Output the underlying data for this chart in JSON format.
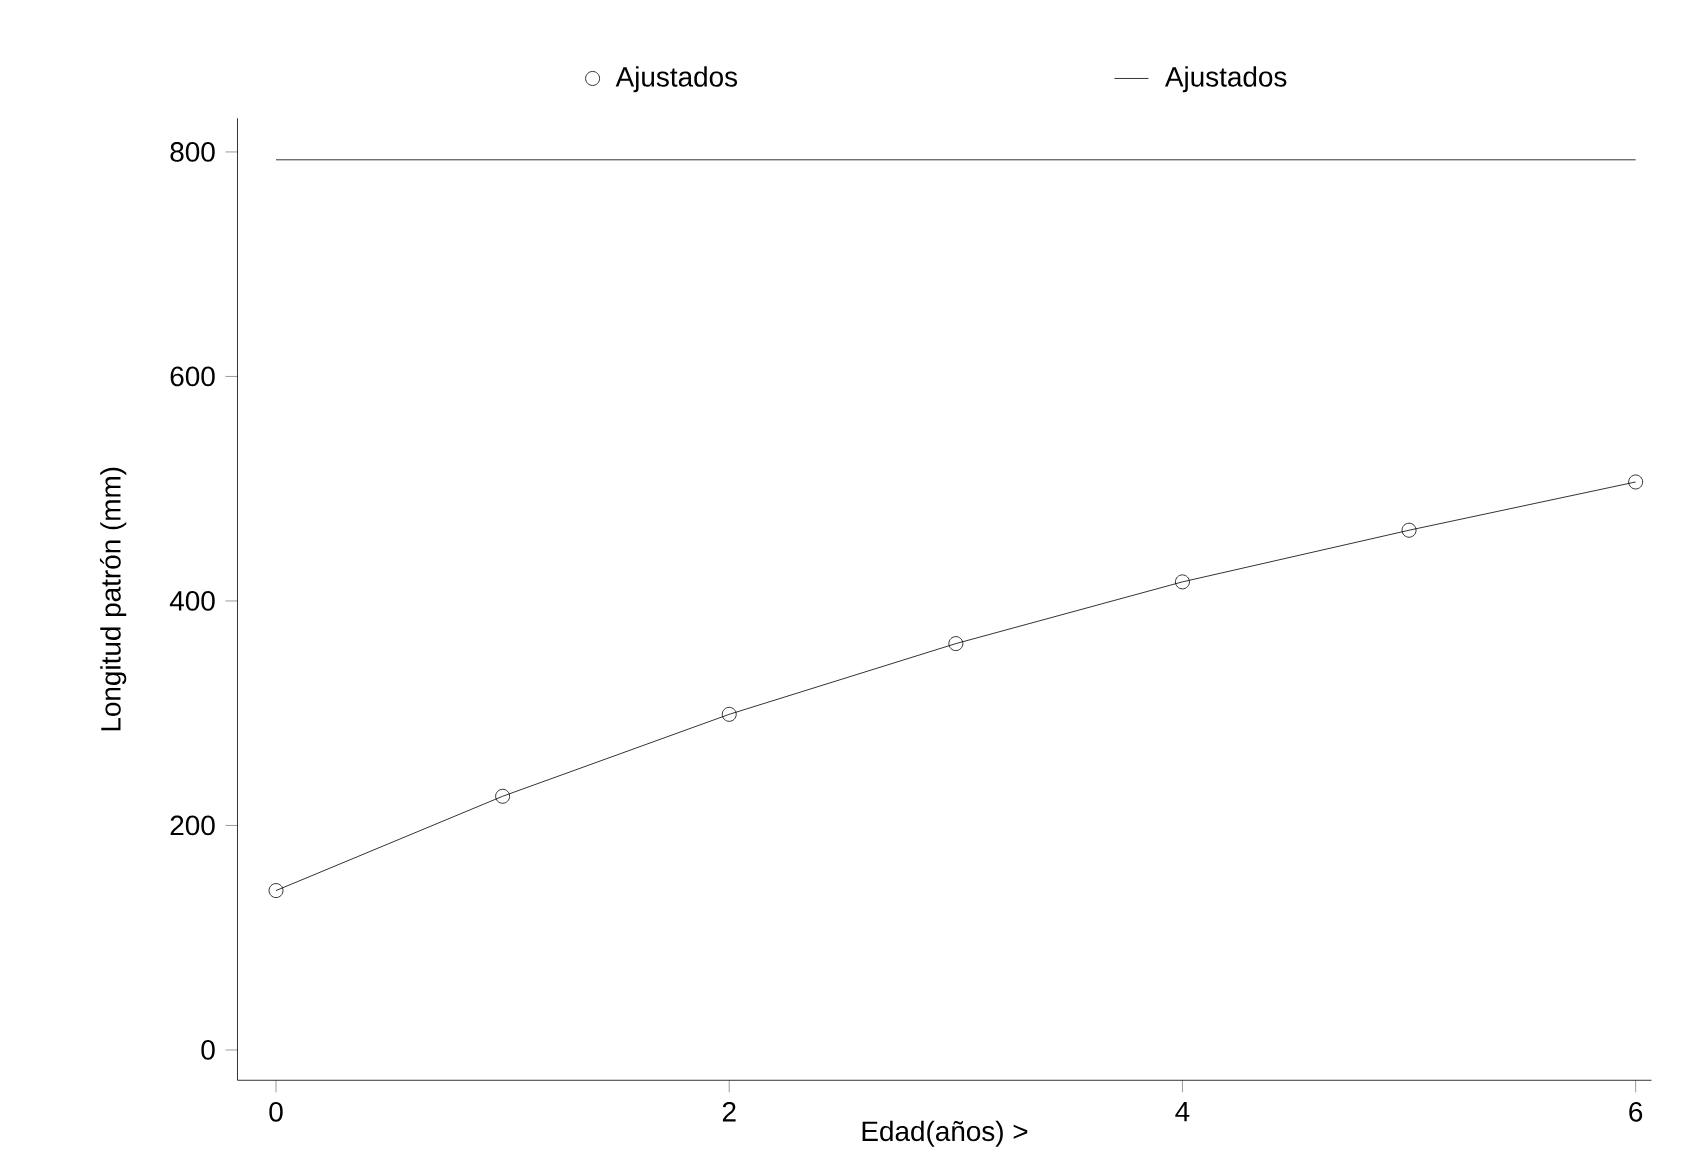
{
  "chart_data": {
    "type": "line",
    "xlabel": "Edad(años) >",
    "ylabel": "Longitud patrón (mm)",
    "x": [
      0,
      1,
      2,
      3,
      4,
      5,
      6
    ],
    "series": [
      {
        "name": "Ajustados",
        "type": "scatter",
        "marker": "circle",
        "color": "#000000",
        "values": [
          142,
          226,
          299,
          362,
          417,
          463,
          506
        ]
      },
      {
        "name": "Ajustados",
        "marker": "none",
        "line_style": "solid",
        "color": "#000000",
        "values": [
          142,
          226,
          299,
          362,
          417,
          463,
          506
        ]
      }
    ],
    "ref_lines": [
      {
        "axis": "y",
        "value": 793,
        "color": "#000000"
      }
    ],
    "xlim": [
      -0.17,
      6.07
    ],
    "ylim": [
      -27,
      830
    ],
    "xticks": [
      0,
      2,
      4,
      6
    ],
    "yticks": [
      0,
      200,
      400,
      600,
      800
    ],
    "grid": false,
    "legend": "top"
  }
}
